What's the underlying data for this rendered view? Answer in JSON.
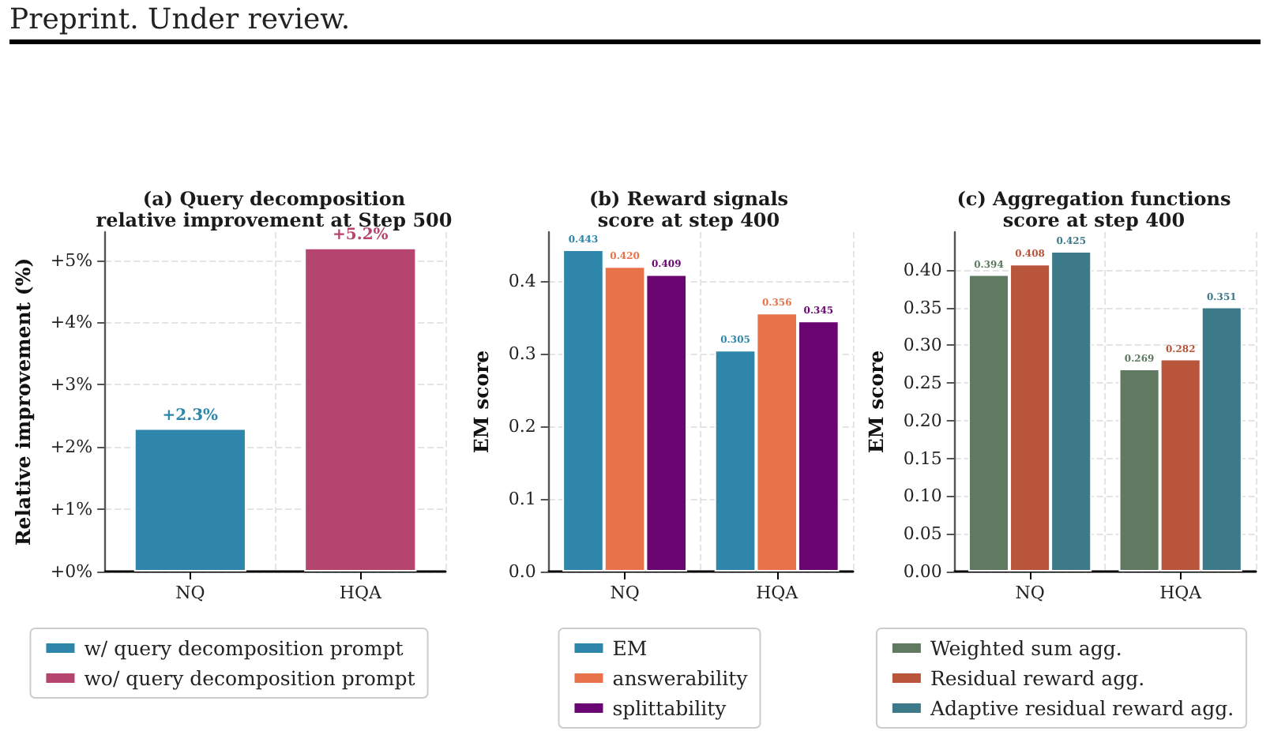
{
  "chart_data": [
    {
      "type": "bar",
      "title": "(a) Query decomposition\nrelative improvement at Step 500",
      "ylabel": "Relative improvement (%)",
      "annotations": [
        "Preprint. Under review."
      ],
      "categories": [
        "NQ",
        "HQA"
      ],
      "stacked": true,
      "series": [
        {
          "name": "w/ query decomposition prompt",
          "color": "#2e86ab",
          "values": [
            2.3,
            null
          ],
          "value_labels": [
            "+2.3%",
            null
          ]
        },
        {
          "name": "wo/ query decomposition prompt",
          "color": "#b5446e",
          "values": [
            null,
            5.2
          ],
          "value_labels": [
            null,
            "+5.2%"
          ]
        }
      ],
      "ylim": [
        0,
        5.45
      ],
      "yticks": [
        {
          "value": 0,
          "label": "+0%"
        },
        {
          "value": 1,
          "label": "+1%"
        },
        {
          "value": 2,
          "label": "+2%"
        },
        {
          "value": 3,
          "label": "+3%"
        },
        {
          "value": 4,
          "label": "+4%"
        },
        {
          "value": 5,
          "label": "+5%"
        }
      ],
      "grid": true,
      "legend": "bottom"
    },
    {
      "type": "bar",
      "title": "(b) Reward signals\nscore at step 400",
      "ylabel": "EM score",
      "categories": [
        "NQ",
        "HQA"
      ],
      "series": [
        {
          "name": "EM",
          "color": "#2e86ab",
          "values": [
            0.443,
            0.305
          ],
          "value_labels": [
            "0.443",
            "0.305"
          ]
        },
        {
          "name": "answerability",
          "color": "#e8734a",
          "values": [
            0.42,
            0.356
          ],
          "value_labels": [
            "0.420",
            "0.356"
          ]
        },
        {
          "name": "splittability",
          "color": "#6a0572",
          "values": [
            0.409,
            0.345
          ],
          "value_labels": [
            "0.409",
            "0.345"
          ]
        }
      ],
      "ylim": [
        0,
        0.467
      ],
      "yticks": [
        {
          "value": 0,
          "label": "0.0"
        },
        0.1,
        0.2,
        0.3,
        0.4
      ],
      "grid": true,
      "legend": "bottom"
    },
    {
      "type": "bar",
      "title": "(c) Aggregation functions\nscore at step 400",
      "ylabel": "EM score",
      "categories": [
        "NQ",
        "HQA"
      ],
      "series": [
        {
          "name": "Weighted sum agg.",
          "color": "#5f7a61",
          "values": [
            0.394,
            0.269
          ],
          "value_labels": [
            "0.394",
            "0.269"
          ]
        },
        {
          "name": "Residual reward agg.",
          "color": "#b9553b",
          "values": [
            0.408,
            0.282
          ],
          "value_labels": [
            "0.408",
            "0.282"
          ]
        },
        {
          "name": "Adaptive residual reward agg.",
          "color": "#3d7a89",
          "values": [
            0.425,
            0.351
          ],
          "value_labels": [
            "0.425",
            "0.351"
          ]
        }
      ],
      "ylim": [
        0,
        0.45
      ],
      "yticks": [
        {
          "value": 0,
          "label": "0.00"
        },
        {
          "value": 0.05,
          "label": "0.05"
        },
        {
          "value": 0.1,
          "label": "0.10"
        },
        {
          "value": 0.15,
          "label": "0.15"
        },
        {
          "value": 0.2,
          "label": "0.20"
        },
        {
          "value": 0.25,
          "label": "0.25"
        },
        {
          "value": 0.3,
          "label": "0.30"
        },
        {
          "value": 0.35,
          "label": "0.35"
        },
        {
          "value": 0.4,
          "label": "0.40"
        }
      ],
      "grid": true,
      "legend": "bottom"
    }
  ]
}
